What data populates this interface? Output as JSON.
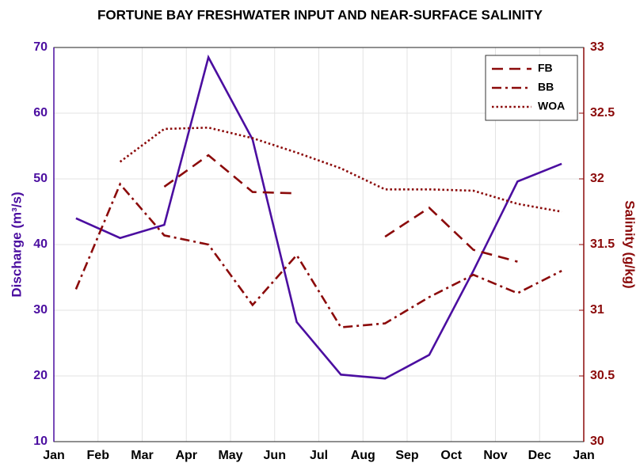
{
  "chart_data": {
    "type": "line",
    "title": "FORTUNE BAY FRESHWATER INPUT AND NEAR-SURFACE SALINITY",
    "y_label": "Discharge (m³/s)",
    "y2_label": "Salinity (g/kg)",
    "x": [
      0.5,
      1.5,
      2.5,
      3.5,
      4.5,
      5.5,
      6.5,
      7.5,
      8.5,
      9.5,
      10.5,
      11.5
    ],
    "xlim": [
      0,
      12
    ],
    "xticks": [
      {
        "value": 0,
        "label": "Jan"
      },
      {
        "value": 1,
        "label": "Feb"
      },
      {
        "value": 2,
        "label": "Mar"
      },
      {
        "value": 3,
        "label": "Apr"
      },
      {
        "value": 4,
        "label": "May"
      },
      {
        "value": 5,
        "label": "Jun"
      },
      {
        "value": 6,
        "label": "Jul"
      },
      {
        "value": 7,
        "label": "Aug"
      },
      {
        "value": 8,
        "label": "Sep"
      },
      {
        "value": 9,
        "label": "Oct"
      },
      {
        "value": 10,
        "label": "Nov"
      },
      {
        "value": 11,
        "label": "Dec"
      },
      {
        "value": 12,
        "label": "Jan"
      }
    ],
    "ylim": [
      10,
      70
    ],
    "yticks": [
      10,
      20,
      30,
      40,
      50,
      60,
      70
    ],
    "y2lim": [
      30,
      33
    ],
    "y2ticks": [
      30,
      30.5,
      31,
      31.5,
      32,
      32.5,
      33
    ],
    "y_color": "#4b0ea0",
    "y2_color": "#8b0a0a",
    "grid": true,
    "legend": "top-right",
    "series": [
      {
        "name": "Discharge",
        "color": "#4b0ea0",
        "line_style": "solid",
        "in_legend": false,
        "values": [
          44,
          41,
          43,
          68.5,
          56,
          28.2,
          20.2,
          19.6,
          23.2,
          36,
          49.6,
          52.3
        ]
      },
      {
        "name": "FB",
        "color": "#8b0a0a",
        "line_style": "dashed",
        "axis": "y2",
        "values": [
          null,
          null,
          31.94,
          32.18,
          31.9,
          31.89,
          null,
          31.56,
          31.78,
          31.46,
          31.37,
          null
        ]
      },
      {
        "name": "BB",
        "color": "#8b0a0a",
        "line_style": "dashdot",
        "axis": "y2",
        "values": [
          31.16,
          31.96,
          31.57,
          31.5,
          31.04,
          31.42,
          30.87,
          30.9,
          31.1,
          31.27,
          31.13,
          31.3
        ]
      },
      {
        "name": "WOA",
        "color": "#8b0a0a",
        "line_style": "dotted",
        "axis": "y2",
        "values": [
          null,
          32.13,
          32.38,
          32.39,
          32.31,
          32.2,
          32.08,
          31.92,
          31.92,
          31.91,
          31.81,
          31.75
        ]
      }
    ]
  }
}
